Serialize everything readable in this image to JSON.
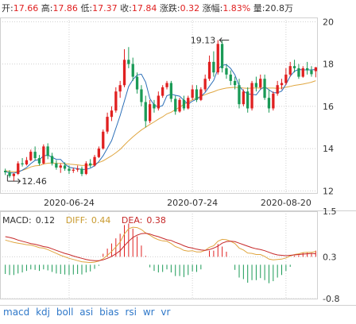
{
  "quote": {
    "open_label": "开:",
    "open": "17.66",
    "high_label": "高:",
    "high": "17.86",
    "low_label": "低:",
    "low": "17.37",
    "close_label": "收:",
    "close": "17.84",
    "change_label": "涨跌:",
    "change": "0.32",
    "pct_label": "涨幅:",
    "pct": "1.83%",
    "vol_label": "量:",
    "vol": "20.8万"
  },
  "macd_legend": {
    "macd_label": "MACD:",
    "macd": "0.12",
    "diff_label": "DIFF:",
    "diff": "0.44",
    "dea_label": "DEA:",
    "dea": "0.38"
  },
  "tabs": [
    "macd",
    "kdj",
    "boll",
    "asi",
    "bias",
    "rsi",
    "wr",
    "vr"
  ],
  "colors": {
    "up": "#e02020",
    "down": "#1a9a56",
    "ma_fast": "#2c6fb8",
    "ma_slow": "#e0a640",
    "dea": "#c62828",
    "grid": "#d0d0d0"
  },
  "chart_data": [
    {
      "type": "candlestick",
      "x_ticks": [
        "2020-06-24",
        "2020-07-24",
        "2020-08-20"
      ],
      "y_ticks": [
        "20",
        "18",
        "16",
        "14",
        "12"
      ],
      "ylim": [
        11.9,
        20.2
      ],
      "annotations": [
        {
          "text": "19.13"
        },
        {
          "text": "12.46"
        }
      ],
      "ohlc": [
        [
          12.95,
          13.05,
          12.75,
          12.88
        ],
        [
          12.88,
          12.98,
          12.62,
          12.7
        ],
        [
          12.7,
          12.85,
          12.46,
          12.8
        ],
        [
          12.8,
          13.4,
          12.75,
          13.3
        ],
        [
          13.3,
          13.55,
          13.15,
          13.25
        ],
        [
          13.25,
          13.6,
          13.2,
          13.45
        ],
        [
          13.45,
          13.95,
          13.4,
          13.85
        ],
        [
          13.85,
          14.1,
          13.45,
          13.55
        ],
        [
          13.55,
          13.7,
          13.2,
          13.3
        ],
        [
          13.3,
          14.2,
          13.25,
          14.1
        ],
        [
          14.1,
          14.25,
          13.5,
          13.65
        ],
        [
          13.65,
          13.8,
          13.2,
          13.3
        ],
        [
          13.3,
          13.45,
          13.0,
          13.1
        ],
        [
          13.1,
          13.3,
          12.85,
          13.2
        ],
        [
          13.2,
          13.35,
          12.95,
          13.05
        ],
        [
          13.05,
          13.2,
          12.8,
          12.95
        ],
        [
          12.95,
          13.1,
          12.85,
          13.0
        ],
        [
          13.0,
          13.2,
          12.9,
          13.05
        ],
        [
          13.05,
          13.15,
          12.7,
          12.8
        ],
        [
          12.8,
          13.4,
          12.75,
          13.3
        ],
        [
          13.3,
          13.5,
          13.1,
          13.2
        ],
        [
          13.2,
          13.7,
          13.15,
          13.6
        ],
        [
          13.6,
          14.1,
          13.55,
          14.0
        ],
        [
          14.0,
          14.9,
          13.95,
          14.8
        ],
        [
          14.8,
          15.7,
          14.7,
          15.5
        ],
        [
          15.5,
          16.0,
          15.3,
          15.8
        ],
        [
          15.8,
          16.9,
          15.7,
          16.7
        ],
        [
          16.7,
          17.2,
          16.4,
          17.0
        ],
        [
          17.0,
          18.7,
          16.9,
          18.2
        ],
        [
          18.2,
          18.8,
          17.8,
          18.0
        ],
        [
          18.0,
          18.3,
          17.2,
          17.4
        ],
        [
          17.4,
          17.6,
          16.6,
          16.8
        ],
        [
          16.8,
          17.0,
          16.0,
          16.2
        ],
        [
          16.2,
          16.5,
          15.0,
          15.3
        ],
        [
          15.3,
          16.3,
          15.2,
          16.1
        ],
        [
          16.1,
          16.3,
          15.7,
          15.9
        ],
        [
          15.9,
          16.7,
          15.8,
          16.5
        ],
        [
          16.5,
          17.0,
          16.4,
          16.9
        ],
        [
          16.9,
          17.2,
          16.8,
          17.1
        ],
        [
          17.1,
          17.2,
          16.2,
          16.35
        ],
        [
          16.35,
          16.5,
          15.6,
          15.75
        ],
        [
          15.75,
          16.4,
          15.7,
          16.3
        ],
        [
          16.3,
          16.5,
          15.8,
          15.9
        ],
        [
          15.9,
          16.5,
          15.85,
          16.4
        ],
        [
          16.4,
          17.0,
          16.3,
          16.8
        ],
        [
          16.8,
          17.0,
          16.2,
          16.3
        ],
        [
          16.3,
          16.9,
          16.25,
          16.8
        ],
        [
          16.8,
          17.5,
          16.7,
          17.3
        ],
        [
          17.3,
          18.4,
          17.2,
          18.1
        ],
        [
          18.1,
          18.6,
          17.4,
          17.6
        ],
        [
          17.6,
          19.13,
          17.5,
          18.95
        ],
        [
          18.95,
          19.1,
          17.6,
          17.8
        ],
        [
          17.8,
          18.0,
          17.3,
          17.5
        ],
        [
          17.5,
          17.7,
          17.0,
          17.2
        ],
        [
          17.2,
          17.4,
          16.8,
          17.0
        ],
        [
          17.0,
          17.3,
          15.9,
          16.1
        ],
        [
          16.1,
          16.8,
          16.0,
          16.7
        ],
        [
          16.7,
          16.9,
          15.7,
          15.9
        ],
        [
          15.9,
          17.2,
          15.8,
          17.1
        ],
        [
          17.1,
          17.4,
          16.7,
          16.9
        ],
        [
          16.9,
          17.5,
          16.8,
          17.3
        ],
        [
          17.3,
          17.5,
          16.3,
          16.4
        ],
        [
          16.4,
          16.8,
          15.7,
          15.9
        ],
        [
          15.9,
          16.7,
          15.8,
          16.6
        ],
        [
          16.6,
          17.2,
          16.5,
          17.0
        ],
        [
          17.0,
          17.3,
          16.8,
          17.1
        ],
        [
          17.1,
          17.8,
          17.0,
          17.5
        ],
        [
          17.5,
          18.1,
          17.4,
          17.9
        ],
        [
          17.9,
          18.2,
          17.6,
          17.8
        ],
        [
          17.8,
          18.0,
          17.3,
          17.4
        ],
        [
          17.4,
          17.9,
          17.35,
          17.8
        ],
        [
          17.8,
          18.1,
          17.5,
          17.7
        ],
        [
          17.7,
          17.9,
          17.4,
          17.52
        ],
        [
          17.66,
          17.86,
          17.37,
          17.84
        ]
      ],
      "ma5": [
        12.9,
        12.86,
        12.84,
        12.88,
        12.98,
        13.1,
        13.29,
        13.44,
        13.48,
        13.65,
        13.69,
        13.59,
        13.49,
        13.49,
        13.27,
        13.12,
        13.08,
        13.05,
        13.01,
        13.02,
        13.07,
        13.19,
        13.39,
        13.66,
        14.02,
        14.38,
        14.96,
        15.56,
        16.24,
        16.94,
        17.26,
        17.48,
        17.52,
        17.14,
        16.36,
        16.06,
        15.96,
        16.04,
        16.5,
        16.57,
        16.52,
        16.48,
        16.28,
        16.1,
        16.24,
        16.34,
        16.46,
        16.66,
        16.94,
        17.22,
        17.76,
        17.94,
        17.97,
        17.79,
        17.49,
        16.96,
        16.72,
        16.58,
        16.56,
        16.54,
        16.8,
        16.92,
        16.78,
        16.64,
        16.64,
        16.72,
        17.04,
        17.42,
        17.66,
        17.74,
        17.72,
        17.72,
        17.72,
        17.74
      ],
      "ma20": [
        12.95,
        12.92,
        12.9,
        12.92,
        12.97,
        13.04,
        13.13,
        13.18,
        13.2,
        13.27,
        13.31,
        13.32,
        13.3,
        13.3,
        13.28,
        13.26,
        13.25,
        13.23,
        13.2,
        13.21,
        13.22,
        13.27,
        13.34,
        13.42,
        13.54,
        13.66,
        13.8,
        13.96,
        14.17,
        14.37,
        14.55,
        14.72,
        14.88,
        15.01,
        15.14,
        15.26,
        15.39,
        15.5,
        15.64,
        15.72,
        15.84,
        15.96,
        16.09,
        16.2,
        16.3,
        16.4,
        16.47,
        16.55,
        16.63,
        16.69,
        16.77,
        16.82,
        16.86,
        16.88,
        16.9,
        16.88,
        16.86,
        16.85,
        16.86,
        16.86,
        16.87,
        16.87,
        16.86,
        16.86,
        16.85,
        16.86,
        16.9,
        16.94,
        16.99,
        17.02,
        17.05,
        17.09,
        17.14,
        17.21
      ],
      "x_tick_index": [
        15,
        44,
        66
      ]
    },
    {
      "type": "macd",
      "y_ticks": [
        "1.5",
        "0.3",
        "-0.8"
      ],
      "ylim": [
        -0.8,
        1.5
      ],
      "macd": [
        -0.18,
        -0.2,
        -0.2,
        -0.17,
        -0.15,
        -0.12,
        -0.09,
        -0.1,
        -0.12,
        -0.09,
        -0.11,
        -0.14,
        -0.17,
        -0.18,
        -0.19,
        -0.2,
        -0.19,
        -0.18,
        -0.19,
        -0.15,
        -0.13,
        -0.08,
        -0.02,
        0.06,
        0.16,
        0.26,
        0.36,
        0.45,
        0.62,
        0.65,
        0.55,
        0.4,
        0.22,
        0.02,
        -0.05,
        -0.12,
        -0.15,
        -0.14,
        -0.09,
        -0.15,
        -0.22,
        -0.22,
        -0.24,
        -0.2,
        -0.13,
        -0.14,
        -0.09,
        0.0,
        0.12,
        0.12,
        0.25,
        0.2,
        0.1,
        0.0,
        -0.1,
        -0.25,
        -0.28,
        -0.35,
        -0.3,
        -0.3,
        -0.26,
        -0.3,
        -0.36,
        -0.32,
        -0.25,
        -0.2,
        -0.12,
        -0.04,
        0.02,
        0.03,
        0.08,
        0.08,
        0.07,
        0.12
      ],
      "diff": [
        0.74,
        0.71,
        0.68,
        0.66,
        0.64,
        0.62,
        0.61,
        0.58,
        0.54,
        0.53,
        0.49,
        0.44,
        0.39,
        0.34,
        0.3,
        0.26,
        0.23,
        0.2,
        0.17,
        0.16,
        0.15,
        0.16,
        0.19,
        0.25,
        0.34,
        0.44,
        0.56,
        0.69,
        0.9,
        1.04,
        1.08,
        1.07,
        1.02,
        0.93,
        0.87,
        0.8,
        0.75,
        0.72,
        0.71,
        0.65,
        0.57,
        0.53,
        0.47,
        0.45,
        0.46,
        0.43,
        0.43,
        0.47,
        0.55,
        0.59,
        0.71,
        0.76,
        0.75,
        0.71,
        0.65,
        0.53,
        0.48,
        0.4,
        0.39,
        0.36,
        0.36,
        0.31,
        0.24,
        0.22,
        0.23,
        0.24,
        0.27,
        0.32,
        0.36,
        0.38,
        0.41,
        0.42,
        0.42,
        0.44
      ],
      "dea": [
        0.83,
        0.81,
        0.78,
        0.74,
        0.71,
        0.68,
        0.65,
        0.63,
        0.6,
        0.57,
        0.55,
        0.51,
        0.47,
        0.43,
        0.39,
        0.36,
        0.32,
        0.29,
        0.26,
        0.23,
        0.21,
        0.2,
        0.2,
        0.22,
        0.26,
        0.31,
        0.38,
        0.46,
        0.59,
        0.71,
        0.81,
        0.87,
        0.91,
        0.92,
        0.9,
        0.86,
        0.83,
        0.79,
        0.75,
        0.73,
        0.68,
        0.64,
        0.59,
        0.55,
        0.53,
        0.5,
        0.48,
        0.47,
        0.49,
        0.53,
        0.58,
        0.66,
        0.7,
        0.71,
        0.7,
        0.66,
        0.62,
        0.58,
        0.54,
        0.51,
        0.49,
        0.46,
        0.42,
        0.38,
        0.35,
        0.34,
        0.33,
        0.34,
        0.35,
        0.36,
        0.37,
        0.38,
        0.39,
        0.38
      ]
    }
  ]
}
